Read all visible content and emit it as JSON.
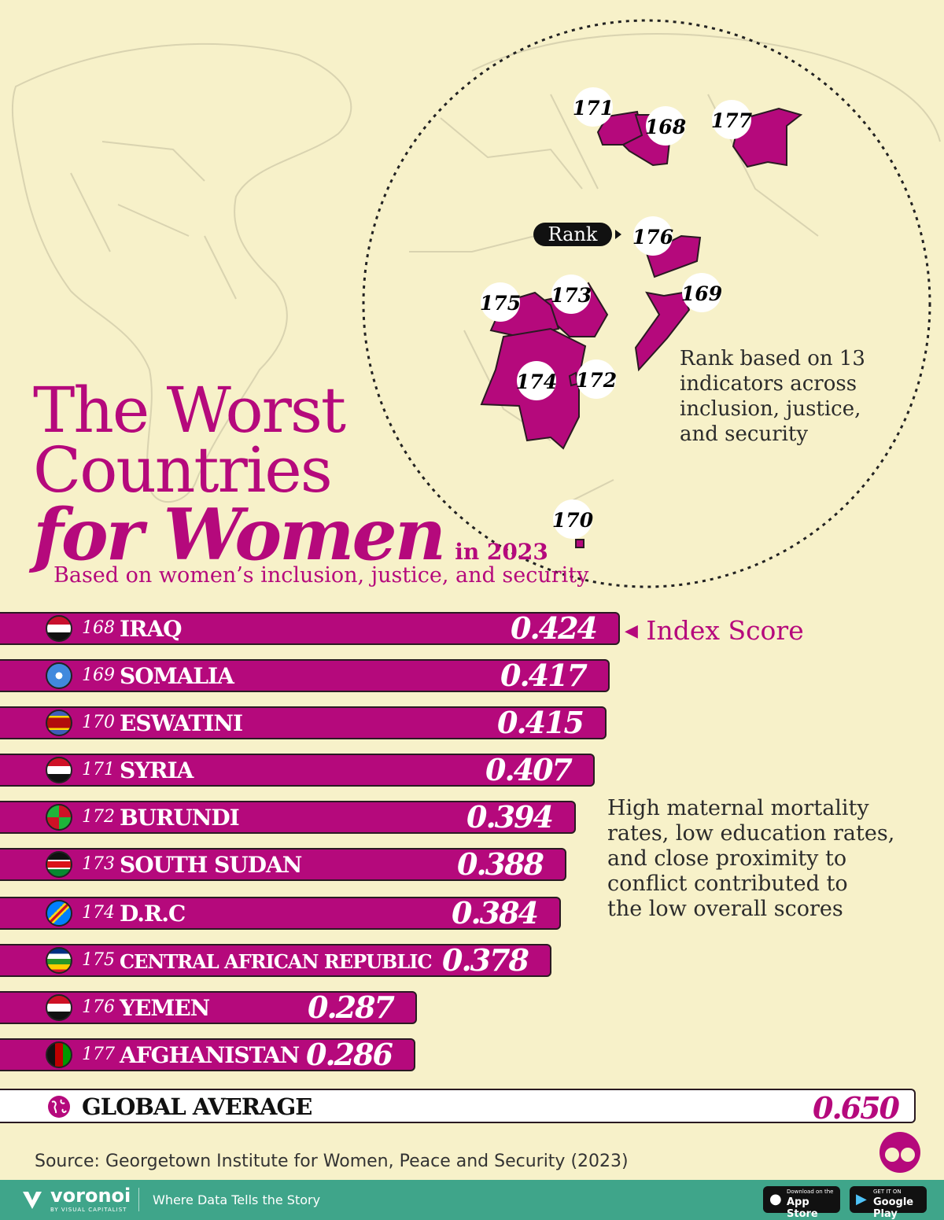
{
  "title": {
    "line1": "The Worst",
    "line2": "Countries",
    "line3": "for Women",
    "year": "in 2023",
    "subtitle": "Based on women’s inclusion, justice, and security"
  },
  "annotations": {
    "rank_label": "Rank",
    "rank_note": [
      "Rank based on 13",
      "indicators across",
      "inclusion, justice,",
      "and security"
    ],
    "index_label": "Index Score",
    "cause_note": [
      "High maternal mortality",
      "rates, low education rates,",
      "and close proximity to",
      "conflict contributed to",
      "the low overall scores"
    ]
  },
  "map_markers": [
    "171",
    "168",
    "177",
    "176",
    "175",
    "173",
    "169",
    "174",
    "172",
    "170"
  ],
  "chart_data": {
    "type": "bar",
    "orientation": "horizontal",
    "title": "The Worst Countries for Women in 2023",
    "value_label": "Index Score",
    "xlim": [
      0,
      0.7
    ],
    "categories": [
      "IRAQ",
      "SOMALIA",
      "ESWATINI",
      "SYRIA",
      "BURUNDI",
      "SOUTH SUDAN",
      "D.R.C",
      "CENTRAL AFRICAN REPUBLIC",
      "YEMEN",
      "AFGHANISTAN"
    ],
    "ranks": [
      "168",
      "169",
      "170",
      "171",
      "172",
      "173",
      "174",
      "175",
      "176",
      "177"
    ],
    "values": [
      0.424,
      0.417,
      0.415,
      0.407,
      0.394,
      0.388,
      0.384,
      0.378,
      0.287,
      0.286
    ],
    "value_labels": [
      "0.424",
      "0.417",
      "0.415",
      "0.407",
      "0.394",
      "0.388",
      "0.384",
      "0.378",
      "0.287",
      "0.286"
    ],
    "reference": {
      "label": "GLOBAL AVERAGE",
      "value": 0.65,
      "value_label": "0.650"
    }
  },
  "source": "Source: Georgetown Institute for Women, Peace and Security (2023)",
  "footer": {
    "brand": "voronoi",
    "brand_sub": "BY VISUAL CAPITALIST",
    "tagline": "Where Data Tells the Story",
    "appstore_small": "Download on the",
    "appstore": "App Store",
    "play_small": "GET IT ON",
    "play": "Google Play"
  },
  "colors": {
    "accent": "#b5097c",
    "background": "#f7f1c9",
    "footer": "#3fa58a"
  }
}
